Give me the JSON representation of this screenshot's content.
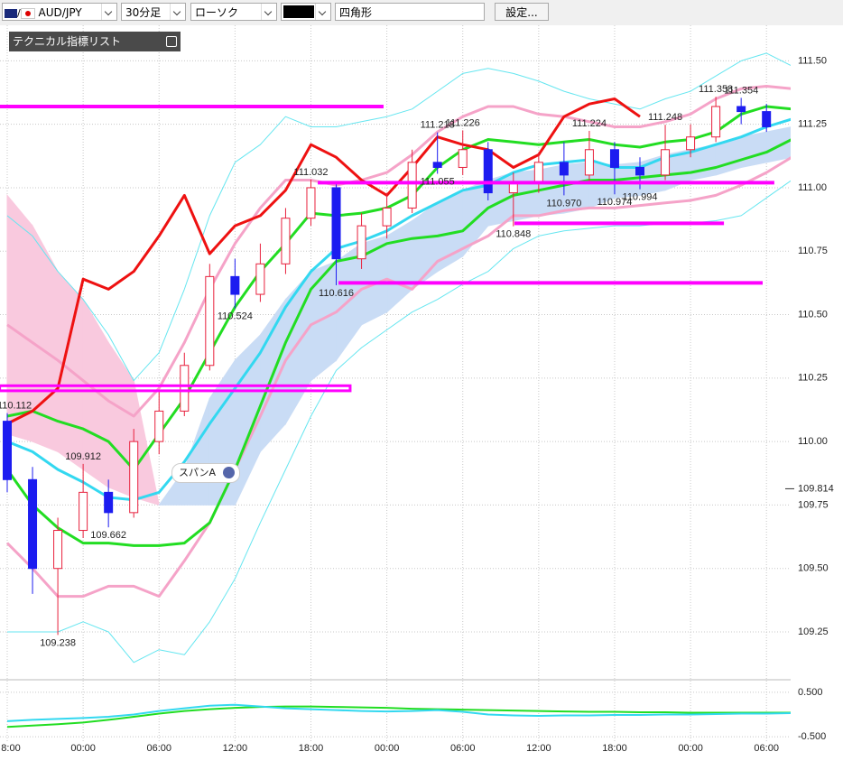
{
  "toolbar": {
    "symbol": "AUD/JPY",
    "timeframe": "30分足",
    "chart_style": "ローソク",
    "drawing_tool": "四角形",
    "settings_button": "設定..."
  },
  "indicator_panel": {
    "title": "テクニカル指標リスト"
  },
  "chart_data": {
    "type": "candlestick",
    "categories": [
      "8:00",
      null,
      null,
      "00:00",
      null,
      null,
      "06:00",
      null,
      null,
      "12:00",
      null,
      null,
      "18:00",
      null,
      null,
      "00:00",
      null,
      null,
      "06:00",
      null,
      null,
      "12:00",
      null,
      null,
      "18:00",
      null,
      null,
      "00:00",
      null,
      null,
      "06:00",
      null
    ],
    "open": [
      110.08,
      109.85,
      109.5,
      109.65,
      109.8,
      109.72,
      110.0,
      110.12,
      110.3,
      110.65,
      110.58,
      110.7,
      110.88,
      111.0,
      110.72,
      110.85,
      110.92,
      111.1,
      111.08,
      111.15,
      110.98,
      111.02,
      111.1,
      111.05,
      111.15,
      111.08,
      111.05,
      111.15,
      111.2,
      111.32,
      111.3,
      null
    ],
    "high": [
      110.112,
      109.9,
      109.7,
      109.912,
      109.85,
      110.05,
      110.2,
      110.35,
      110.7,
      110.72,
      110.78,
      110.92,
      111.032,
      111.02,
      110.9,
      110.98,
      111.15,
      111.218,
      111.226,
      111.18,
      111.06,
      111.14,
      111.18,
      111.224,
      111.18,
      111.12,
      111.248,
      111.25,
      111.358,
      111.354,
      111.33,
      null
    ],
    "low": [
      109.8,
      109.4,
      109.238,
      109.62,
      109.662,
      109.7,
      109.95,
      110.1,
      110.28,
      110.524,
      110.55,
      110.66,
      110.85,
      110.616,
      110.68,
      110.8,
      110.9,
      111.055,
      111.05,
      110.95,
      110.848,
      110.98,
      110.97,
      111.02,
      110.974,
      110.994,
      111.03,
      111.12,
      111.18,
      111.25,
      111.22,
      null
    ],
    "close": [
      109.85,
      109.5,
      109.65,
      109.8,
      109.72,
      110.0,
      110.12,
      110.3,
      110.65,
      110.58,
      110.7,
      110.88,
      111.0,
      110.72,
      110.85,
      110.92,
      111.1,
      111.08,
      111.15,
      110.98,
      111.02,
      111.1,
      111.05,
      111.15,
      111.08,
      111.05,
      111.15,
      111.2,
      111.32,
      111.3,
      111.24,
      null
    ],
    "high_labels": [
      "110.112",
      null,
      null,
      "109.912",
      null,
      null,
      null,
      null,
      null,
      null,
      null,
      null,
      "111.032",
      null,
      null,
      null,
      null,
      "111.218",
      "111.226",
      null,
      null,
      null,
      null,
      "111.224",
      null,
      null,
      "111.248",
      null,
      "111.358",
      "111.354",
      null,
      null
    ],
    "low_labels": [
      null,
      null,
      "109.238",
      null,
      "109.662",
      null,
      null,
      null,
      null,
      "110.524",
      null,
      null,
      null,
      "110.616",
      null,
      null,
      null,
      "111.055",
      null,
      null,
      "110.848",
      null,
      "110.970",
      null,
      "110.974",
      "110.994",
      null,
      null,
      null,
      null,
      null,
      null
    ],
    "up_color": "#e8203c",
    "down_color": "#1c1cf0",
    "ylim": [
      109.09,
      111.64
    ],
    "yticks": [
      {
        "value": 109.25,
        "label": "109.25"
      },
      {
        "value": 109.5,
        "label": "109.50"
      },
      {
        "value": 109.75,
        "label": "109.75"
      },
      {
        "value": 110,
        "label": "110.00"
      },
      {
        "value": 110.25,
        "label": "110.25"
      },
      {
        "value": 110.5,
        "label": "110.50"
      },
      {
        "value": 110.75,
        "label": "110.75"
      },
      {
        "value": 111,
        "label": "111.00"
      },
      {
        "value": 111.25,
        "label": "111.25"
      },
      {
        "value": 111.5,
        "label": "111.50"
      }
    ],
    "marker_price": {
      "value": 109.814,
      "label": "109.814"
    },
    "grid": true,
    "cloud": {
      "label": "スパンA",
      "bull_color": "#c9dcf5",
      "bear_color": "#f9c9de",
      "span_a": [
        110.03,
        110.0,
        109.96,
        109.89,
        109.82,
        109.78,
        109.75,
        109.89,
        110.17,
        110.32,
        110.42,
        110.56,
        110.67,
        110.71,
        110.78,
        110.81,
        110.87,
        110.94,
        110.99,
        111.03,
        111.06,
        111.07,
        111.09,
        111.1,
        111.09,
        111.1,
        111.13,
        111.15,
        111.17,
        111.2,
        111.22,
        111.24
      ],
      "span_b": [
        110.97,
        110.85,
        110.67,
        110.56,
        110.39,
        110.24,
        109.75,
        109.75,
        109.75,
        109.75,
        109.96,
        110.07,
        110.24,
        110.32,
        110.46,
        110.51,
        110.6,
        110.67,
        110.73,
        110.85,
        110.87,
        110.89,
        110.9,
        110.92,
        110.96,
        110.97,
        110.99,
        111.03,
        111.05,
        111.08,
        111.1,
        111.12
      ]
    },
    "series": [
      {
        "color": "#66e6f0",
        "width": 1,
        "values": [
          110.89,
          110.81,
          110.67,
          110.56,
          110.42,
          110.24,
          110.35,
          110.6,
          110.89,
          111.1,
          111.17,
          111.28,
          111.24,
          111.24,
          111.26,
          111.28,
          111.31,
          111.38,
          111.45,
          111.47,
          111.45,
          111.42,
          111.38,
          111.35,
          111.33,
          111.31,
          111.35,
          111.38,
          111.44,
          111.5,
          111.53,
          111.48
        ]
      },
      {
        "color": "#66e6f0",
        "width": 1,
        "values": [
          109.25,
          109.25,
          109.25,
          109.29,
          109.25,
          109.13,
          109.18,
          109.16,
          109.29,
          109.46,
          109.68,
          109.89,
          110.1,
          110.28,
          110.37,
          110.44,
          110.51,
          110.56,
          110.62,
          110.67,
          110.76,
          110.81,
          110.83,
          110.84,
          110.85,
          110.85,
          110.86,
          110.86,
          110.87,
          110.89,
          110.96,
          111.03
        ]
      },
      {
        "color": "#f5a3c8",
        "width": 3,
        "values": [
          110.46,
          110.39,
          110.32,
          110.24,
          110.16,
          110.1,
          110.21,
          110.39,
          110.6,
          110.78,
          110.92,
          111.03,
          111.03,
          111.01,
          111.03,
          111.06,
          111.13,
          111.22,
          111.28,
          111.32,
          111.32,
          111.29,
          111.28,
          111.26,
          111.24,
          111.24,
          111.26,
          111.29,
          111.35,
          111.39,
          111.4,
          111.39
        ]
      },
      {
        "color": "#f5a3c8",
        "width": 3,
        "values": [
          109.6,
          109.5,
          109.39,
          109.39,
          109.43,
          109.43,
          109.39,
          109.53,
          109.68,
          109.89,
          110.1,
          110.32,
          110.46,
          110.51,
          110.6,
          110.64,
          110.6,
          110.71,
          110.76,
          110.81,
          110.89,
          110.89,
          110.91,
          110.92,
          110.92,
          110.93,
          110.94,
          110.95,
          110.97,
          111.01,
          111.06,
          111.12
        ]
      },
      {
        "color": "#22dd22",
        "width": 3,
        "values": [
          110.1,
          110.12,
          110.08,
          110.05,
          110.0,
          109.89,
          110.03,
          110.17,
          110.35,
          110.53,
          110.67,
          110.78,
          110.9,
          110.89,
          110.9,
          110.92,
          110.97,
          111.08,
          111.15,
          111.19,
          111.18,
          111.17,
          111.18,
          111.19,
          111.17,
          111.16,
          111.18,
          111.19,
          111.22,
          111.29,
          111.32,
          111.31
        ]
      },
      {
        "color": "#22dd22",
        "width": 3,
        "values": [
          109.89,
          109.75,
          109.66,
          109.6,
          109.6,
          109.59,
          109.59,
          109.6,
          109.68,
          109.89,
          110.14,
          110.39,
          110.6,
          110.71,
          110.73,
          110.78,
          110.8,
          110.81,
          110.83,
          110.92,
          110.97,
          110.99,
          111.01,
          111.03,
          111.03,
          111.04,
          111.05,
          111.06,
          111.08,
          111.11,
          111.14,
          111.19
        ]
      },
      {
        "color": "#33d8f0",
        "width": 3,
        "values": [
          110.0,
          109.96,
          109.89,
          109.84,
          109.78,
          109.77,
          109.8,
          109.92,
          110.07,
          110.21,
          110.35,
          110.53,
          110.67,
          110.76,
          110.79,
          110.83,
          110.89,
          110.94,
          110.99,
          111.01,
          111.06,
          111.09,
          111.1,
          111.11,
          111.08,
          111.08,
          111.12,
          111.14,
          111.17,
          111.2,
          111.24,
          111.27
        ]
      },
      {
        "color": "#ee1111",
        "width": 3,
        "values": [
          110.07,
          110.12,
          110.21,
          110.64,
          110.6,
          110.67,
          110.81,
          110.97,
          110.74,
          110.85,
          110.89,
          110.99,
          111.17,
          111.12,
          111.03,
          110.97,
          111.08,
          111.2,
          111.17,
          111.15,
          111.08,
          111.13,
          111.28,
          111.33,
          111.35,
          111.28,
          null,
          null,
          null,
          null,
          null,
          null
        ]
      },
      {
        "color": "#22dd22",
        "width": 2,
        "axis": "y2",
        "values": [
          -0.28,
          -0.25,
          -0.22,
          -0.18,
          -0.12,
          -0.05,
          0.02,
          0.08,
          0.12,
          0.15,
          0.17,
          0.18,
          0.18,
          0.17,
          0.16,
          0.15,
          0.13,
          0.12,
          0.11,
          0.1,
          0.09,
          0.08,
          0.07,
          0.06,
          0.06,
          0.05,
          0.05,
          0.04,
          0.04,
          0.04,
          0.04,
          0.04
        ]
      },
      {
        "color": "#33d8f0",
        "width": 2,
        "axis": "y2",
        "values": [
          -0.15,
          -0.12,
          -0.1,
          -0.08,
          -0.05,
          0.0,
          0.08,
          0.14,
          0.2,
          0.22,
          0.18,
          0.14,
          0.12,
          0.1,
          0.08,
          0.07,
          0.08,
          0.1,
          0.06,
          0.0,
          -0.02,
          -0.03,
          -0.02,
          -0.02,
          -0.01,
          -0.01,
          0,
          0,
          0.01,
          0.02,
          0.02,
          0.03
        ]
      }
    ],
    "drawings": {
      "color": "#ff00ff",
      "lines": [
        {
          "price": 111.32,
          "from": -0.3,
          "to": 14.87
        },
        {
          "price": 111.02,
          "from": 12.27,
          "to": 30.31
        },
        {
          "price": 110.86,
          "from": 20.04,
          "to": 28.32
        },
        {
          "price": 110.625,
          "from": 13.09,
          "to": 29.85
        }
      ],
      "boxes": [
        {
          "top": 110.22,
          "bottom": 110.2,
          "from": -0.3,
          "to": 13.55
        }
      ]
    },
    "y2lim": [
      -0.6,
      0.6
    ],
    "y2ticks": [
      {
        "value": 0.5,
        "label": "0.500"
      },
      {
        "value": -0.5,
        "label": "-0.500"
      }
    ]
  }
}
